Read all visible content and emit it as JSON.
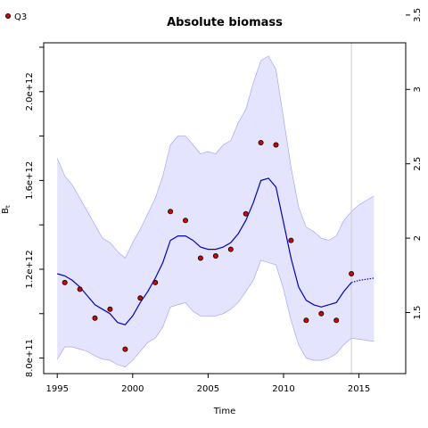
{
  "chart_data": {
    "type": "line",
    "title": "Absolute biomass",
    "xlabel": "Time",
    "ylabel": "B",
    "ylabel_subscript": "t",
    "xlim": [
      1994.1,
      2018.1
    ],
    "ylim": [
      730000000000.0,
      2220000000000.0
    ],
    "x_ticks": [
      1995,
      2000,
      2005,
      2010,
      2015
    ],
    "x_tick_labels": [
      "1995",
      "2000",
      "2005",
      "2010",
      "2015"
    ],
    "y_ticks": [
      800000000000.0,
      1200000000000.0,
      1600000000000.0,
      2000000000000.0
    ],
    "y_tick_labels": [
      "8.0e+11",
      "1.2e+12",
      "1.6e+12",
      "2.0e+12"
    ],
    "y_minor_ticks": [
      1000000000000.0,
      1400000000000.0,
      1800000000000.0,
      2200000000000.0
    ],
    "right_axis": {
      "ticks": [
        1.5,
        2.0,
        2.5,
        3.0,
        3.5
      ],
      "tick_labels": [
        "1.5",
        "2",
        "2.5",
        "3",
        "3.5"
      ],
      "value_per_unit": 670000000000.0
    },
    "vline_x": 2014.5,
    "legend": {
      "label": "Q3",
      "position": "top-left"
    },
    "colors": {
      "band_fill": "#e4e4ff",
      "band_edge": "#9a9aff",
      "line": "#0000cc",
      "point_fill": "#dd0000",
      "point_edge": "#000000",
      "vline": "#cccccc"
    },
    "series": [
      {
        "name": "Q3",
        "type": "scatter",
        "x": [
          1995.5,
          1996.5,
          1997.5,
          1998.5,
          1999.5,
          2000.5,
          2001.5,
          2002.5,
          2003.5,
          2004.5,
          2005.5,
          2006.5,
          2007.5,
          2008.5,
          2009.5,
          2010.5,
          2011.5,
          2012.5,
          2013.5,
          2014.5
        ],
        "y": [
          1140000000000.0,
          1110000000000.0,
          980000000000.0,
          1020000000000.0,
          840000000000.0,
          1070000000000.0,
          1140000000000.0,
          1460000000000.0,
          1420000000000.0,
          1250000000000.0,
          1260000000000.0,
          1290000000000.0,
          1450000000000.0,
          1770000000000.0,
          1760000000000.0,
          1330000000000.0,
          970000000000.0,
          1000000000000.0,
          970000000000.0,
          1180000000000.0
        ]
      },
      {
        "type": "line",
        "x": [
          1995.0,
          1995.5,
          1996.0,
          1996.5,
          1997.0,
          1997.5,
          1998.0,
          1998.5,
          1999.0,
          1999.5,
          2000.0,
          2000.5,
          2001.0,
          2001.5,
          2002.0,
          2002.5,
          2003.0,
          2003.5,
          2004.0,
          2004.5,
          2005.0,
          2005.5,
          2006.0,
          2006.5,
          2007.0,
          2007.5,
          2008.0,
          2008.5,
          2009.0,
          2009.5,
          2010.0,
          2010.5,
          2011.0,
          2011.5,
          2012.0,
          2012.5,
          2013.0,
          2013.5,
          2014.0,
          2014.5
        ],
        "y": [
          1180000000000.0,
          1170000000000.0,
          1150000000000.0,
          1120000000000.0,
          1080000000000.0,
          1040000000000.0,
          1020000000000.0,
          1000000000000.0,
          960000000000.0,
          950000000000.0,
          990000000000.0,
          1050000000000.0,
          1100000000000.0,
          1160000000000.0,
          1230000000000.0,
          1330000000000.0,
          1350000000000.0,
          1350000000000.0,
          1330000000000.0,
          1300000000000.0,
          1290000000000.0,
          1290000000000.0,
          1300000000000.0,
          1320000000000.0,
          1360000000000.0,
          1420000000000.0,
          1500000000000.0,
          1600000000000.0,
          1610000000000.0,
          1570000000000.0,
          1410000000000.0,
          1250000000000.0,
          1120000000000.0,
          1060000000000.0,
          1040000000000.0,
          1030000000000.0,
          1040000000000.0,
          1050000000000.0,
          1100000000000.0,
          1140000000000.0
        ]
      },
      {
        "type": "line",
        "style": "dotted",
        "x": [
          2014.5,
          2015.0,
          2015.5,
          2016.0
        ],
        "y": [
          1140000000000.0,
          1150000000000.0,
          1155000000000.0,
          1160000000000.0
        ]
      },
      {
        "type": "area",
        "x": [
          1995.0,
          1995.5,
          1996.0,
          1996.5,
          1997.0,
          1997.5,
          1998.0,
          1998.5,
          1999.0,
          1999.5,
          2000.0,
          2000.5,
          2001.0,
          2001.5,
          2002.0,
          2002.5,
          2003.0,
          2003.5,
          2004.0,
          2004.5,
          2005.0,
          2005.5,
          2006.0,
          2006.5,
          2007.0,
          2007.5,
          2008.0,
          2008.5,
          2009.0,
          2009.5,
          2010.0,
          2010.5,
          2011.0,
          2011.5,
          2012.0,
          2012.5,
          2013.0,
          2013.5,
          2014.0,
          2014.5,
          2015.0,
          2015.5,
          2016.0
        ],
        "upper": [
          1700000000000.0,
          1620000000000.0,
          1580000000000.0,
          1520000000000.0,
          1460000000000.0,
          1400000000000.0,
          1340000000000.0,
          1320000000000.0,
          1280000000000.0,
          1250000000000.0,
          1320000000000.0,
          1380000000000.0,
          1450000000000.0,
          1520000000000.0,
          1620000000000.0,
          1760000000000.0,
          1800000000000.0,
          1800000000000.0,
          1760000000000.0,
          1720000000000.0,
          1730000000000.0,
          1720000000000.0,
          1760000000000.0,
          1780000000000.0,
          1860000000000.0,
          1920000000000.0,
          2040000000000.0,
          2140000000000.0,
          2160000000000.0,
          2100000000000.0,
          1880000000000.0,
          1660000000000.0,
          1480000000000.0,
          1390000000000.0,
          1370000000000.0,
          1340000000000.0,
          1330000000000.0,
          1350000000000.0,
          1420000000000.0,
          1460000000000.0,
          1490000000000.0,
          1510000000000.0,
          1530000000000.0
        ],
        "lower": [
          795000000000.0,
          850000000000.0,
          850000000000.0,
          840000000000.0,
          830000000000.0,
          810000000000.0,
          795000000000.0,
          790000000000.0,
          770000000000.0,
          760000000000.0,
          790000000000.0,
          830000000000.0,
          870000000000.0,
          890000000000.0,
          940000000000.0,
          1030000000000.0,
          1040000000000.0,
          1050000000000.0,
          1010000000000.0,
          990000000000.0,
          990000000000.0,
          990000000000.0,
          1000000000000.0,
          1020000000000.0,
          1050000000000.0,
          1100000000000.0,
          1150000000000.0,
          1240000000000.0,
          1230000000000.0,
          1220000000000.0,
          1110000000000.0,
          970000000000.0,
          860000000000.0,
          800000000000.0,
          790000000000.0,
          790000000000.0,
          800000000000.0,
          820000000000.0,
          860000000000.0,
          890000000000.0,
          885000000000.0,
          880000000000.0,
          875000000000.0
        ]
      }
    ]
  }
}
